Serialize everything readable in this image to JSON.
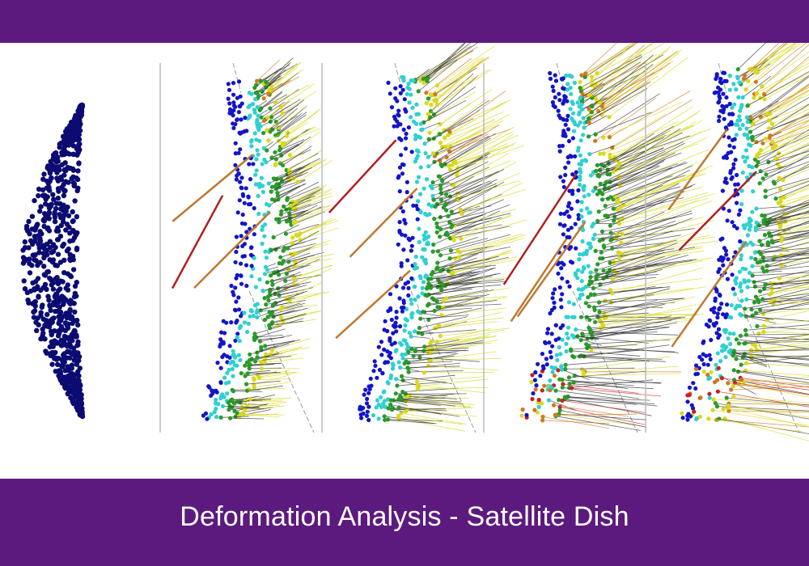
{
  "caption": "Deformation Analysis - Satellite Dish"
}
